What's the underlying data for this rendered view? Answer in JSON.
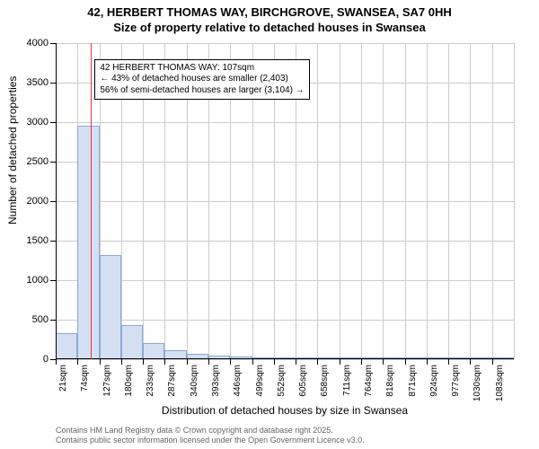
{
  "title": "42, HERBERT THOMAS WAY, BIRCHGROVE, SWANSEA, SA7 0HH",
  "subtitle": "Size of property relative to detached houses in Swansea",
  "chart": {
    "type": "bar",
    "ylabel": "Number of detached properties",
    "xlabel": "Distribution of detached houses by size in Swansea",
    "ylim": [
      0,
      4000
    ],
    "ytick_step": 500,
    "yticks": [
      0,
      500,
      1000,
      1500,
      2000,
      2500,
      3000,
      3500,
      4000
    ],
    "x_categories": [
      "21sqm",
      "74sqm",
      "127sqm",
      "180sqm",
      "233sqm",
      "287sqm",
      "340sqm",
      "393sqm",
      "446sqm",
      "499sqm",
      "552sqm",
      "605sqm",
      "658sqm",
      "711sqm",
      "764sqm",
      "818sqm",
      "871sqm",
      "924sqm",
      "977sqm",
      "1030sqm",
      "1083sqm"
    ],
    "bar_values": [
      330,
      2950,
      1320,
      430,
      210,
      110,
      70,
      40,
      30,
      28,
      15,
      5,
      5,
      5,
      5,
      3,
      3,
      3,
      3,
      3,
      3
    ],
    "bar_fill": "#d4e0f2",
    "bar_border": "#8aa8d8",
    "grid_color": "#cccccc",
    "axis_color": "#000000",
    "background_color": "#ffffff",
    "bar_width_ratio": 1.0,
    "label_fontsize": 12,
    "tick_fontsize": 10
  },
  "marker": {
    "position_sqm": 107,
    "color": "#ee3333",
    "annotation_lines": [
      "42 HERBERT THOMAS WAY: 107sqm",
      "← 43% of detached houses are smaller (2,403)",
      "56% of semi-detached houses are larger (3,104) →"
    ]
  },
  "footer": {
    "line1": "Contains HM Land Registry data © Crown copyright and database right 2025.",
    "line2": "Contains public sector information licensed under the Open Government Licence v3.0."
  }
}
